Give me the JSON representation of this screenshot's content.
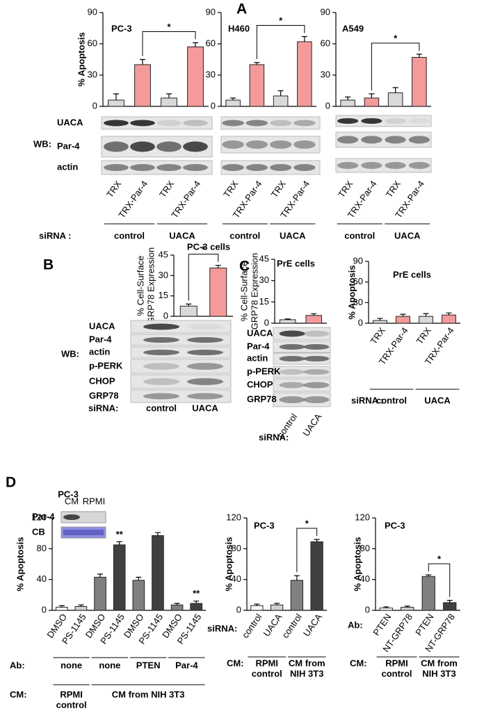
{
  "panels": [
    "A",
    "B",
    "C",
    "D"
  ],
  "chart_data": [
    {
      "type": "bar",
      "title": "PC-3",
      "ylabel": "% Apoptosis",
      "categories": [
        "TRX",
        "TRX-Par-4",
        "TRX",
        "TRX-Par-4"
      ],
      "values": [
        6,
        40,
        8,
        57
      ],
      "errors": [
        6,
        5,
        4,
        4
      ],
      "colors": [
        "#d9d9d9",
        "#f49a9a",
        "#d9d9d9",
        "#f49a9a"
      ],
      "ylim": [
        0,
        90
      ],
      "yticks": [
        0,
        30,
        60,
        90
      ],
      "marks": [
        {
          "label": "*",
          "bars": [
            1,
            3
          ]
        }
      ],
      "blot": {
        "title": "WB:",
        "rows": [
          "UACA",
          "Par-4",
          "actin"
        ]
      },
      "rows": [
        {
          "title": "siRNA :",
          "labels": [
            "control",
            "UACA"
          ]
        }
      ]
    },
    {
      "type": "bar",
      "title": "H460",
      "categories": [
        "TRX",
        "TRX-Par-4",
        "TRX",
        "TRX-Par-4"
      ],
      "values": [
        6,
        40,
        10,
        62
      ],
      "errors": [
        2,
        2,
        5,
        5
      ],
      "colors": [
        "#d9d9d9",
        "#f49a9a",
        "#d9d9d9",
        "#f49a9a"
      ],
      "ylim": [
        0,
        90
      ],
      "yticks": [
        0,
        30,
        60,
        90
      ],
      "marks": [
        {
          "label": "*",
          "bars": [
            1,
            3
          ]
        }
      ],
      "rows": [
        {
          "labels": [
            "control",
            "UACA"
          ]
        }
      ]
    },
    {
      "type": "bar",
      "title": "A549",
      "categories": [
        "TRX",
        "TRX-Par-4",
        "TRX",
        "TRX-Par-4"
      ],
      "values": [
        6,
        8,
        13,
        47
      ],
      "errors": [
        3,
        4,
        5,
        3
      ],
      "colors": [
        "#d9d9d9",
        "#f49a9a",
        "#d9d9d9",
        "#f49a9a"
      ],
      "ylim": [
        0,
        90
      ],
      "yticks": [
        0,
        30,
        60,
        90
      ],
      "marks": [
        {
          "label": "*",
          "bars": [
            1,
            3
          ]
        }
      ],
      "rows": [
        {
          "labels": [
            "control",
            "UACA"
          ]
        }
      ]
    },
    {
      "type": "bar",
      "title": "PC-3 cells",
      "ylabel": [
        "% Cell-Surface",
        "GRP78 Expression"
      ],
      "categories": [
        "control",
        "UACA"
      ],
      "values": [
        7.5,
        35.5
      ],
      "errors": [
        1.5,
        2
      ],
      "colors": [
        "#d9d9d9",
        "#f49a9a"
      ],
      "ylim": [
        0,
        45
      ],
      "yticks": [
        0,
        15,
        30,
        45
      ],
      "marks": [
        {
          "label": "*",
          "bars": [
            0,
            1
          ]
        }
      ],
      "blot": {
        "title": "WB:",
        "rows": [
          "UACA",
          "Par-4",
          "actin",
          "p-PERK",
          "CHOP",
          "GRP78"
        ]
      },
      "xlabel": "siRNA:"
    },
    {
      "type": "bar",
      "title": "PrE cells",
      "ylabel": [
        "% Cell-Surface",
        "GRP78 Expression"
      ],
      "categories": [
        "control",
        "UACA"
      ],
      "values": [
        2.5,
        5.5
      ],
      "errors": [
        0.5,
        1.2
      ],
      "colors": [
        "#d9d9d9",
        "#f49a9a"
      ],
      "ylim": [
        0,
        45
      ],
      "yticks": [
        0,
        15,
        30,
        45
      ],
      "blot": {
        "rows": [
          "UACA",
          "Par-4",
          "actin",
          "p-PERK",
          "CHOP",
          "GRP78"
        ]
      },
      "xlabel": "siRNA:"
    },
    {
      "type": "bar",
      "title": "PrE cells",
      "ylabel": "% Apoptosis",
      "categories": [
        "TRX",
        "TRX-Par-4",
        "TRX",
        "TRX-Par-4"
      ],
      "values": [
        4,
        10,
        10,
        12
      ],
      "errors": [
        3,
        3,
        4,
        3
      ],
      "colors": [
        "#d9d9d9",
        "#f49a9a",
        "#d9d9d9",
        "#f49a9a"
      ],
      "ylim": [
        0,
        90
      ],
      "yticks": [
        0,
        30,
        60,
        90
      ],
      "rows": [
        {
          "title": "siRNA :",
          "labels": [
            "control",
            "UACA"
          ]
        }
      ]
    },
    {
      "type": "bar",
      "title": "PC-3",
      "ylabel": "% Apoptosis",
      "categories": [
        "DMSO",
        "PS-1145",
        "DMSO",
        "PS-1145",
        "DMSO",
        "PS-1145",
        "DMSO",
        "PS-1145"
      ],
      "values": [
        4,
        5,
        43,
        85,
        39,
        97,
        7,
        9
      ],
      "errors": [
        2,
        2,
        4,
        4,
        4,
        4,
        2,
        3
      ],
      "colors": [
        "#ffffff",
        "#d0d0d0",
        "#808080",
        "#404040",
        "#808080",
        "#404040",
        "#808080",
        "#404040"
      ],
      "ylim": [
        0,
        120
      ],
      "yticks": [
        0,
        40,
        80,
        120
      ],
      "marks": [
        {
          "label": "**",
          "bars": [
            3
          ]
        },
        {
          "label": "**",
          "bars": [
            7
          ]
        }
      ],
      "inset": {
        "lanes": [
          "CM",
          "RPMI"
        ],
        "rows": [
          "Par-4",
          "CB"
        ]
      },
      "rows": [
        {
          "title": "Ab:",
          "labels": [
            "none",
            "none",
            "PTEN",
            "Par-4"
          ]
        },
        {
          "title": "CM:",
          "labels": [
            [
              "RPMI",
              "control"
            ],
            [
              "CM from NIH 3T3"
            ]
          ]
        }
      ]
    },
    {
      "type": "bar",
      "title": "PC-3",
      "ylabel": "% Apoptosis",
      "categories": [
        "control",
        "UACA",
        "control",
        "UACA"
      ],
      "values": [
        6,
        7,
        39,
        89
      ],
      "errors": [
        2,
        2,
        6,
        3
      ],
      "colors": [
        "#ffffff",
        "#d0d0d0",
        "#808080",
        "#404040"
      ],
      "ylim": [
        0,
        120
      ],
      "yticks": [
        0,
        40,
        80,
        120
      ],
      "marks": [
        {
          "label": "*",
          "bars": [
            2,
            3
          ]
        }
      ],
      "xlabel": "siRNA:",
      "rows": [
        {
          "title": "CM:",
          "labels": [
            [
              "RPMI",
              "control"
            ],
            [
              "CM from",
              "NIH 3T3"
            ]
          ]
        }
      ]
    },
    {
      "type": "bar",
      "title": "PC-3",
      "ylabel": "% Apoptosis",
      "categories": [
        "PTEN",
        "NT-GRP78",
        "PTEN",
        "NT-GRP78"
      ],
      "values": [
        3,
        4,
        44,
        10
      ],
      "errors": [
        1.5,
        1.5,
        2,
        3
      ],
      "colors": [
        "#ffffff",
        "#d0d0d0",
        "#808080",
        "#404040"
      ],
      "ylim": [
        0,
        120
      ],
      "yticks": [
        0,
        40,
        80,
        120
      ],
      "marks": [
        {
          "label": "*",
          "bars": [
            2,
            3
          ]
        }
      ],
      "xlabel": "Ab:",
      "rows": [
        {
          "title": "CM:",
          "labels": [
            [
              "RPMI",
              "control"
            ],
            [
              "CM from",
              "NIH 3T3"
            ]
          ]
        }
      ]
    }
  ]
}
